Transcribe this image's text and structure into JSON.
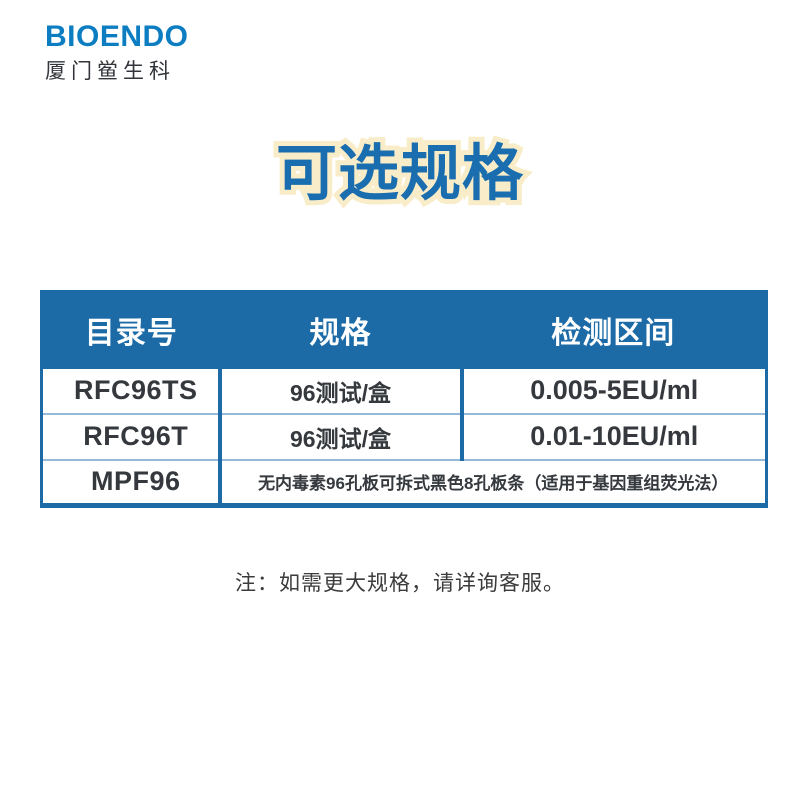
{
  "logo": {
    "brand": "BIOENDO",
    "subtitle": "厦门鲎生科"
  },
  "title": {
    "text": "可选规格"
  },
  "table": {
    "headers": [
      "目录号",
      "规格",
      "检测区间"
    ],
    "rows": [
      {
        "catalog": "RFC96TS",
        "spec": "96测试/盒",
        "range": "0.005-5EU/ml"
      },
      {
        "catalog": "RFC96T",
        "spec": "96测试/盒",
        "range": "0.01-10EU/ml"
      },
      {
        "catalog": "MPF96",
        "description": "无内毒素96孔板可拆式黑色8孔板条（适用于基因重组荧光法）"
      }
    ]
  },
  "note": {
    "text": "注：如需更大规格，请详询客服。"
  },
  "colors": {
    "header_bg": "#1d6ba6",
    "outer_border": "#1d6ba6",
    "row_divider": "#97bada",
    "title_blue": "#1a6dae",
    "title_outline": "#f8edc8",
    "logo_blue": "#0d7dc2",
    "text_dark": "#35393d"
  }
}
